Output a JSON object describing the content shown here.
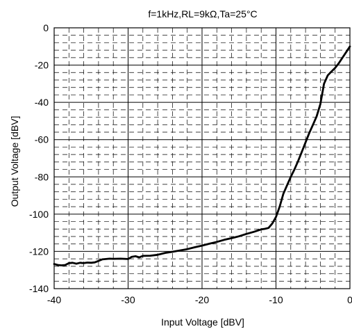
{
  "chart_data": {
    "type": "line",
    "title": "f=1kHz,RL=9kΩ,Ta=25°C",
    "xlabel": "Input Voltage [dBV]",
    "ylabel": "Output Voltage [dBV]",
    "xlim": [
      -40,
      0
    ],
    "ylim": [
      -140,
      0
    ],
    "x_ticks": [
      -40,
      -30,
      -20,
      -10,
      0
    ],
    "y_ticks": [
      0,
      -20,
      -40,
      -60,
      -80,
      -100,
      -120,
      -140
    ],
    "x_tick_labels": [
      "-40",
      "-30",
      "-20",
      "-10",
      "0"
    ],
    "y_tick_labels": [
      "0",
      "-20",
      "-40",
      "-60",
      "-80",
      "-100",
      "-120",
      "-140"
    ],
    "grid": true,
    "series": [
      {
        "x": [
          -40,
          -39.5,
          -39,
          -38.5,
          -38,
          -37.5,
          -37,
          -36.5,
          -36,
          -35.5,
          -35,
          -34.5,
          -34,
          -33.5,
          -33,
          -32.5,
          -32,
          -31,
          -30,
          -29.5,
          -29,
          -28.5,
          -28,
          -27,
          -26,
          -25,
          -24,
          -23,
          -22,
          -21,
          -20,
          -19,
          -18,
          -17,
          -16,
          -15,
          -14,
          -13,
          -12,
          -11.5,
          -11,
          -10.5,
          -10,
          -9.5,
          -9,
          -8.5,
          -8,
          -7.5,
          -7,
          -6.5,
          -6,
          -5.5,
          -5,
          -4.5,
          -4,
          -3.5,
          -3,
          -2.5,
          -2,
          -1.5,
          -1,
          -0.5,
          0
        ],
        "values": [
          -126.8,
          -127.3,
          -127.5,
          -127.3,
          -126.3,
          -126.1,
          -126.6,
          -126.1,
          -126.3,
          -126.0,
          -126.1,
          -125.9,
          -125.1,
          -124.3,
          -124.1,
          -123.9,
          -124.0,
          -123.9,
          -124.1,
          -122.9,
          -122.6,
          -123.2,
          -122.4,
          -122.3,
          -121.8,
          -120.8,
          -120.2,
          -119.5,
          -118.8,
          -117.8,
          -116.9,
          -115.9,
          -114.9,
          -113.8,
          -112.9,
          -111.9,
          -110.6,
          -109.5,
          -108.2,
          -107.9,
          -107.4,
          -105.0,
          -101.5,
          -96.0,
          -89.0,
          -84.5,
          -80.0,
          -76.0,
          -71.5,
          -66.5,
          -61.5,
          -56.5,
          -52.0,
          -47.5,
          -41.0,
          -30.0,
          -25.5,
          -23.5,
          -21.5,
          -19.0,
          -16.0,
          -13.0,
          -10.0
        ]
      }
    ]
  }
}
